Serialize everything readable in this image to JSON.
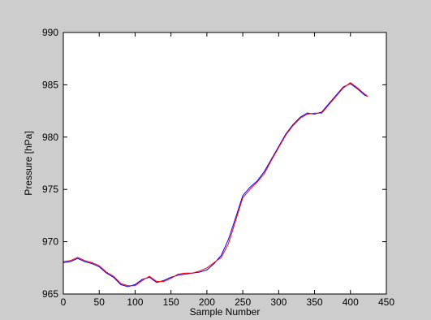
{
  "chart_data": {
    "type": "line",
    "title": "",
    "xlabel": "Sample Number",
    "ylabel": "Pressure [hPa]",
    "xlim": [
      0,
      450
    ],
    "ylim": [
      965,
      990
    ],
    "xticks": [
      0,
      50,
      100,
      150,
      200,
      250,
      300,
      350,
      400,
      450
    ],
    "yticks": [
      965,
      970,
      975,
      980,
      985,
      990
    ],
    "xtick_labels": [
      "0",
      "50",
      "100",
      "150",
      "200",
      "250",
      "300",
      "350",
      "400",
      "450"
    ],
    "ytick_labels": [
      "965",
      "970",
      "975",
      "980",
      "985",
      "990"
    ],
    "grid": false,
    "legend": null,
    "series": [
      {
        "color": "#0000ff",
        "x": [
          0,
          10,
          20,
          30,
          40,
          50,
          60,
          70,
          80,
          90,
          100,
          110,
          120,
          130,
          140,
          150,
          160,
          170,
          180,
          190,
          200,
          210,
          220,
          230,
          240,
          250,
          260,
          270,
          280,
          290,
          300,
          310,
          320,
          330,
          340,
          350,
          360,
          370,
          380,
          390,
          400,
          410,
          420,
          424
        ],
        "y": [
          968.0,
          968.1,
          968.4,
          968.1,
          967.9,
          967.6,
          967.0,
          966.6,
          965.9,
          965.7,
          965.9,
          966.4,
          966.6,
          966.1,
          966.3,
          966.6,
          966.8,
          966.9,
          967.0,
          967.1,
          967.3,
          967.9,
          968.7,
          970.2,
          972.3,
          974.4,
          975.2,
          975.8,
          976.7,
          977.9,
          979.1,
          980.3,
          981.2,
          981.9,
          982.3,
          982.2,
          982.4,
          983.2,
          984.0,
          984.8,
          985.1,
          984.6,
          984.0,
          983.9
        ]
      },
      {
        "color": "#ff0000",
        "x": [
          0,
          10,
          20,
          30,
          40,
          50,
          60,
          70,
          80,
          90,
          100,
          110,
          120,
          130,
          140,
          150,
          160,
          170,
          180,
          190,
          200,
          210,
          220,
          230,
          240,
          250,
          260,
          270,
          280,
          290,
          300,
          310,
          320,
          330,
          340,
          350,
          360,
          370,
          380,
          390,
          400,
          410,
          420,
          424
        ],
        "y": [
          968.1,
          968.2,
          968.5,
          968.2,
          968.0,
          967.7,
          967.1,
          966.7,
          966.0,
          965.8,
          965.8,
          966.3,
          966.7,
          966.2,
          966.2,
          966.5,
          966.9,
          967.0,
          967.0,
          967.2,
          967.5,
          968.0,
          968.5,
          969.8,
          972.0,
          974.2,
          975.0,
          975.7,
          976.5,
          977.8,
          979.0,
          980.2,
          981.1,
          981.8,
          982.2,
          982.3,
          982.3,
          983.1,
          983.9,
          984.7,
          985.2,
          984.7,
          984.1,
          983.9
        ]
      }
    ]
  }
}
